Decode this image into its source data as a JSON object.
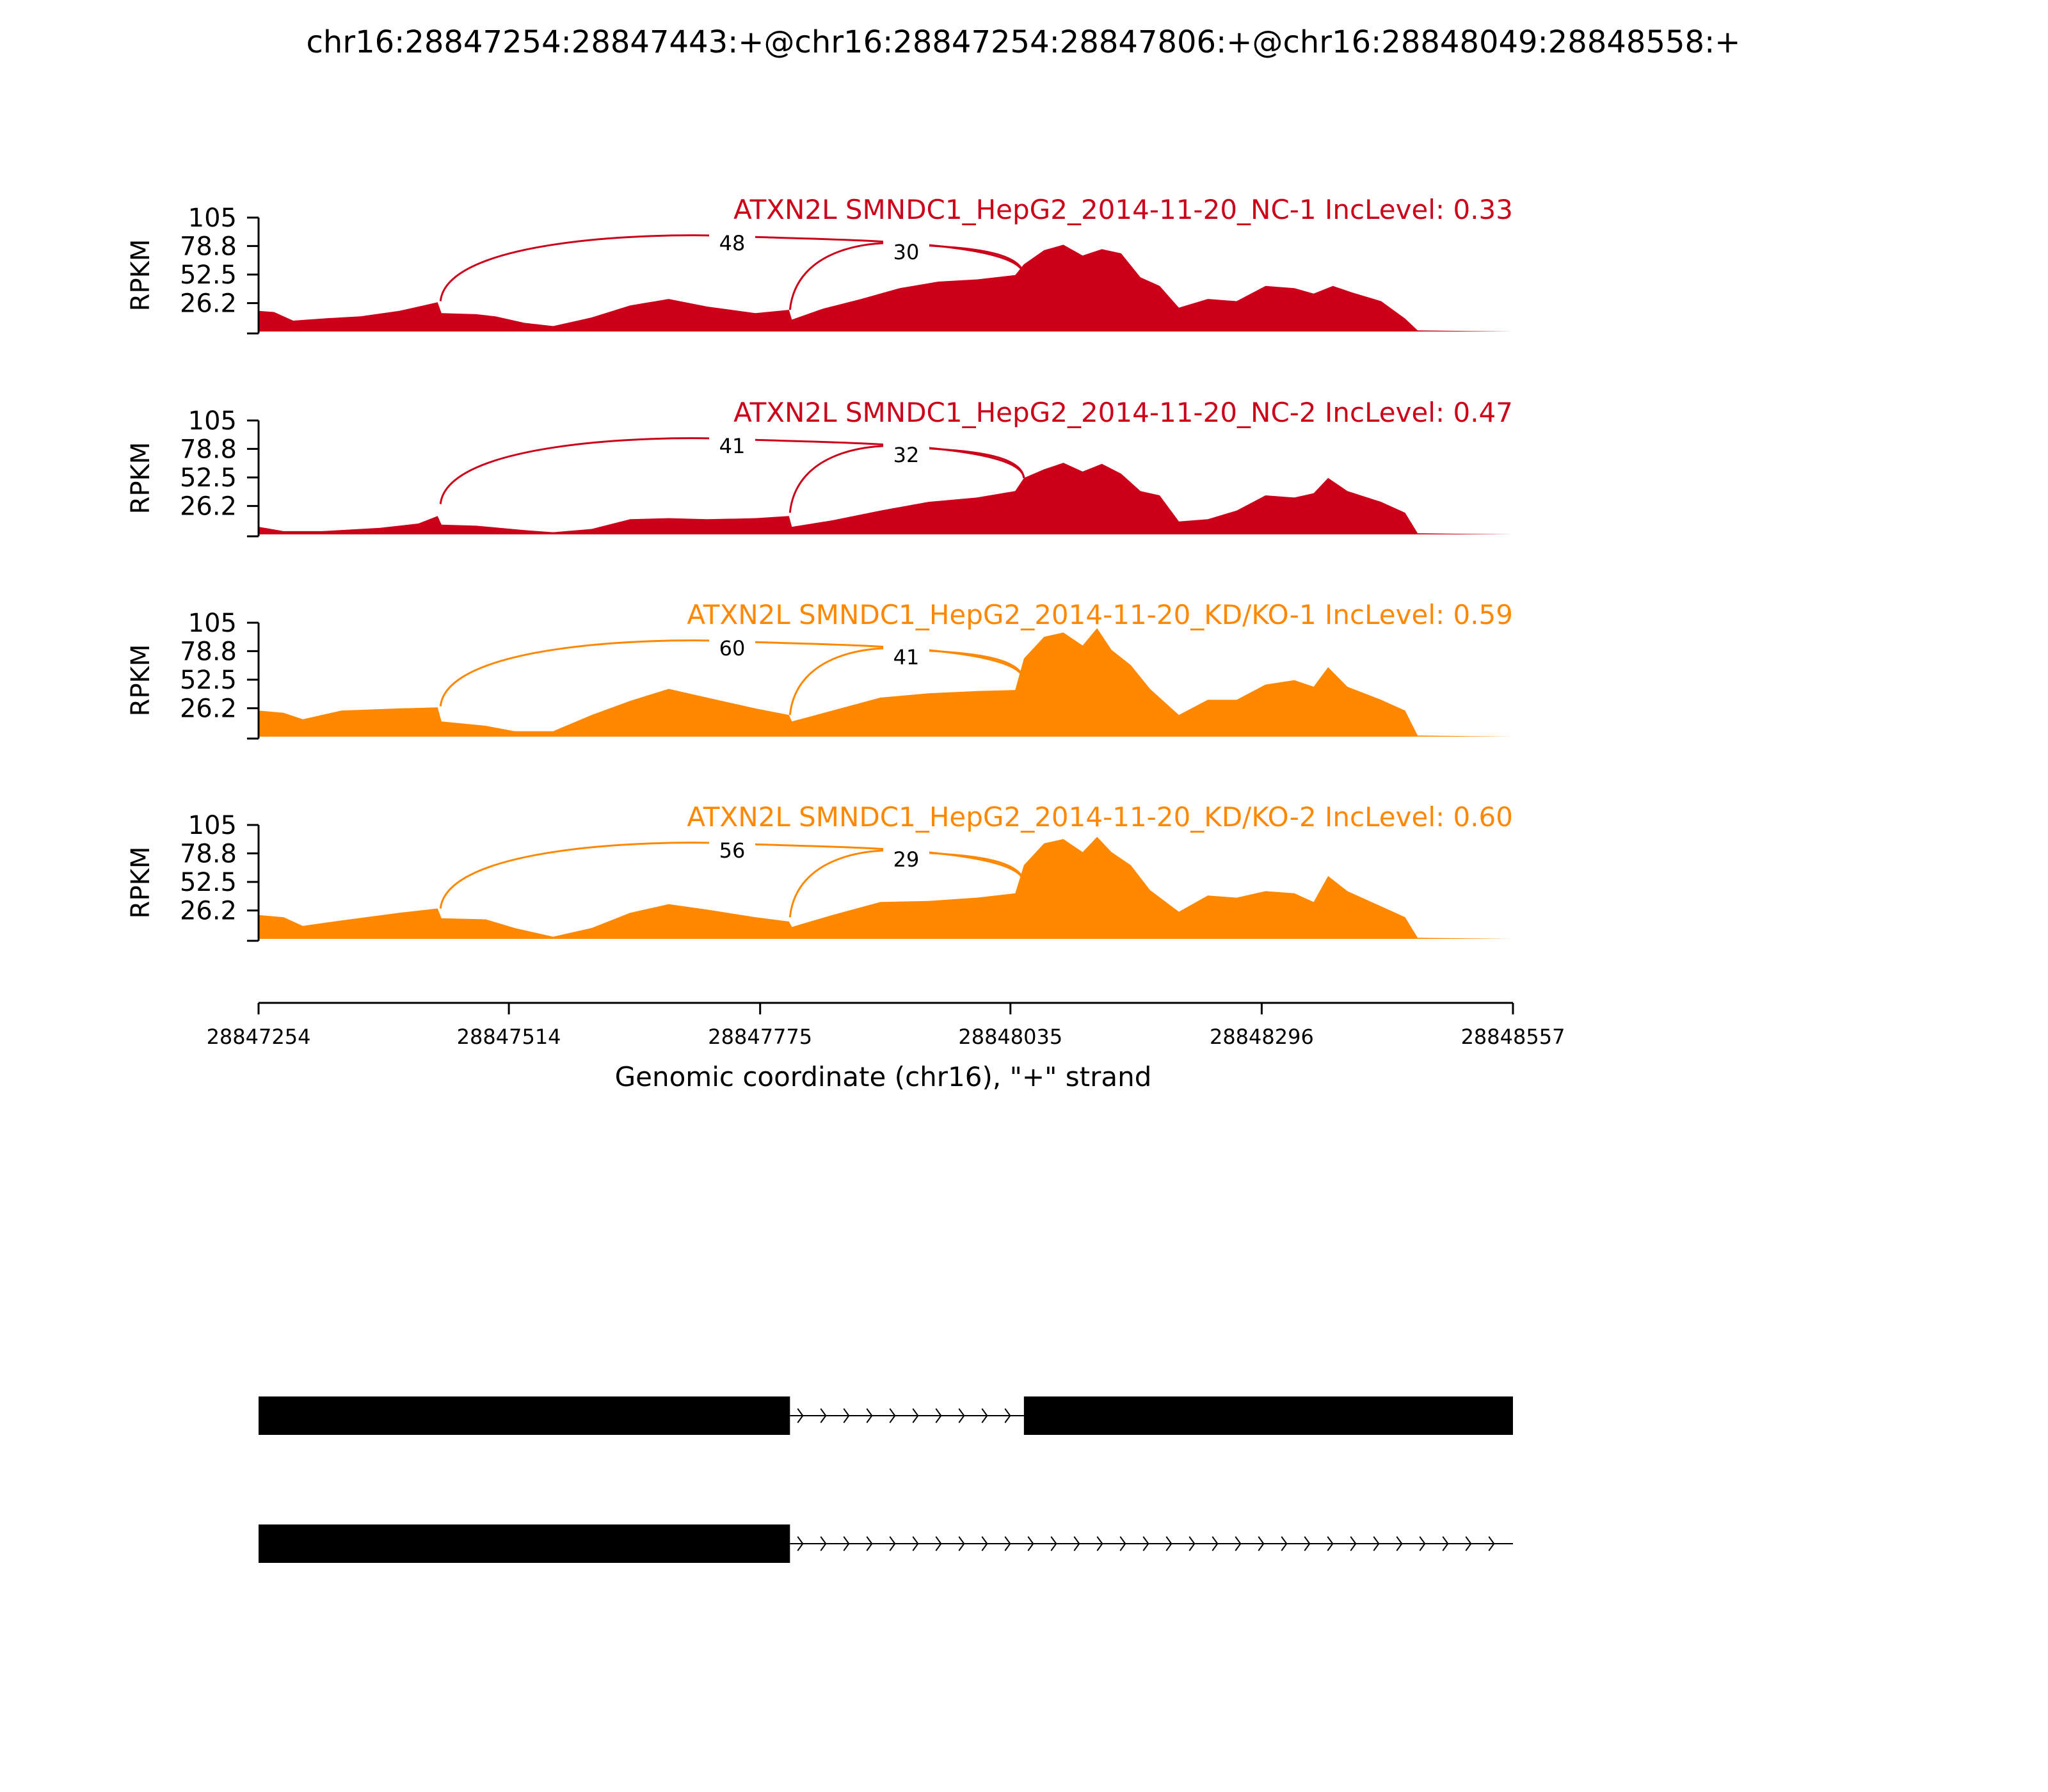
{
  "title": "chr16:28847254:28847443:+@chr16:28847254:28847806:+@chr16:28848049:28848558:+",
  "colors": {
    "nc": "#cc0019",
    "kd": "#ff8800",
    "axis": "#000000",
    "exon": "#000000"
  },
  "chart_data": {
    "type": "area",
    "title": "chr16:28847254:28847443:+@chr16:28847254:28847806:+@chr16:28848049:28848558:+",
    "xlabel": "Genomic coordinate (chr16), \"+\" strand",
    "ylabel": "RPKM",
    "xlim": [
      28847254,
      28848557
    ],
    "x_ticks": [
      "28847254",
      "28847514",
      "28847775",
      "28848035",
      "28848296",
      "28848557"
    ],
    "ylim": [
      0,
      105
    ],
    "y_ticks": [
      "26.2",
      "52.5",
      "78.8",
      "105"
    ],
    "grid": false,
    "tracks": [
      {
        "label": "ATXN2L SMNDC1_HepG2_2014-11-20_NC-1 IncLevel: 0.33",
        "color": "#cc0019",
        "junctions": [
          {
            "from": 28847443,
            "to": 28848049,
            "count": "48"
          },
          {
            "from": 28847806,
            "to": 28848049,
            "count": "30"
          }
        ],
        "coverage": [
          [
            28847254,
            19
          ],
          [
            28847270,
            18
          ],
          [
            28847290,
            10
          ],
          [
            28847320,
            12
          ],
          [
            28847360,
            14
          ],
          [
            28847400,
            19
          ],
          [
            28847440,
            27
          ],
          [
            28847444,
            17
          ],
          [
            28847480,
            16
          ],
          [
            28847500,
            14
          ],
          [
            28847530,
            8
          ],
          [
            28847560,
            5
          ],
          [
            28847600,
            13
          ],
          [
            28847640,
            24
          ],
          [
            28847680,
            30
          ],
          [
            28847720,
            23
          ],
          [
            28847770,
            17
          ],
          [
            28847805,
            20
          ],
          [
            28847808,
            11
          ],
          [
            28847840,
            21
          ],
          [
            28847880,
            30
          ],
          [
            28847920,
            40
          ],
          [
            28847960,
            46
          ],
          [
            28848000,
            48
          ],
          [
            28848040,
            52
          ],
          [
            28848049,
            62
          ],
          [
            28848070,
            75
          ],
          [
            28848090,
            80
          ],
          [
            28848110,
            70
          ],
          [
            28848130,
            76
          ],
          [
            28848150,
            72
          ],
          [
            28848170,
            50
          ],
          [
            28848190,
            42
          ],
          [
            28848210,
            22
          ],
          [
            28848240,
            30
          ],
          [
            28848270,
            28
          ],
          [
            28848300,
            42
          ],
          [
            28848330,
            40
          ],
          [
            28848350,
            35
          ],
          [
            28848370,
            42
          ],
          [
            28848390,
            36
          ],
          [
            28848420,
            28
          ],
          [
            28848445,
            12
          ],
          [
            28848458,
            1
          ],
          [
            28848557,
            0
          ]
        ]
      },
      {
        "label": "ATXN2L SMNDC1_HepG2_2014-11-20_NC-2 IncLevel: 0.47",
        "color": "#cc0019",
        "junctions": [
          {
            "from": 28847443,
            "to": 28848049,
            "count": "41"
          },
          {
            "from": 28847806,
            "to": 28848049,
            "count": "32"
          }
        ],
        "coverage": [
          [
            28847254,
            7
          ],
          [
            28847280,
            3
          ],
          [
            28847320,
            3
          ],
          [
            28847380,
            6
          ],
          [
            28847420,
            10
          ],
          [
            28847440,
            17
          ],
          [
            28847444,
            9
          ],
          [
            28847480,
            8
          ],
          [
            28847530,
            4
          ],
          [
            28847560,
            2
          ],
          [
            28847600,
            5
          ],
          [
            28847640,
            14
          ],
          [
            28847680,
            15
          ],
          [
            28847720,
            14
          ],
          [
            28847770,
            15
          ],
          [
            28847805,
            17
          ],
          [
            28847808,
            7
          ],
          [
            28847850,
            13
          ],
          [
            28847900,
            22
          ],
          [
            28847950,
            30
          ],
          [
            28848000,
            34
          ],
          [
            28848040,
            40
          ],
          [
            28848049,
            52
          ],
          [
            28848070,
            60
          ],
          [
            28848090,
            66
          ],
          [
            28848110,
            58
          ],
          [
            28848130,
            65
          ],
          [
            28848150,
            56
          ],
          [
            28848170,
            40
          ],
          [
            28848190,
            36
          ],
          [
            28848210,
            12
          ],
          [
            28848240,
            14
          ],
          [
            28848270,
            22
          ],
          [
            28848300,
            36
          ],
          [
            28848330,
            34
          ],
          [
            28848350,
            38
          ],
          [
            28848365,
            52
          ],
          [
            28848385,
            40
          ],
          [
            28848420,
            30
          ],
          [
            28848445,
            20
          ],
          [
            28848458,
            1
          ],
          [
            28848557,
            0
          ]
        ]
      },
      {
        "label": "ATXN2L SMNDC1_HepG2_2014-11-20_KD/KO-1 IncLevel: 0.59",
        "color": "#ff8800",
        "junctions": [
          {
            "from": 28847443,
            "to": 28848049,
            "count": "60"
          },
          {
            "from": 28847806,
            "to": 28848049,
            "count": "41"
          }
        ],
        "coverage": [
          [
            28847254,
            24
          ],
          [
            28847280,
            22
          ],
          [
            28847300,
            16
          ],
          [
            28847340,
            24
          ],
          [
            28847400,
            26
          ],
          [
            28847440,
            27
          ],
          [
            28847444,
            14
          ],
          [
            28847490,
            10
          ],
          [
            28847520,
            5
          ],
          [
            28847560,
            5
          ],
          [
            28847600,
            20
          ],
          [
            28847640,
            33
          ],
          [
            28847680,
            44
          ],
          [
            28847720,
            36
          ],
          [
            28847770,
            26
          ],
          [
            28847805,
            20
          ],
          [
            28847808,
            14
          ],
          [
            28847850,
            24
          ],
          [
            28847900,
            36
          ],
          [
            28847950,
            40
          ],
          [
            28848000,
            42
          ],
          [
            28848040,
            43
          ],
          [
            28848049,
            72
          ],
          [
            28848070,
            92
          ],
          [
            28848090,
            96
          ],
          [
            28848110,
            84
          ],
          [
            28848125,
            100
          ],
          [
            28848140,
            80
          ],
          [
            28848160,
            66
          ],
          [
            28848180,
            44
          ],
          [
            28848210,
            20
          ],
          [
            28848240,
            34
          ],
          [
            28848270,
            34
          ],
          [
            28848300,
            48
          ],
          [
            28848330,
            52
          ],
          [
            28848350,
            46
          ],
          [
            28848365,
            64
          ],
          [
            28848385,
            46
          ],
          [
            28848420,
            34
          ],
          [
            28848445,
            24
          ],
          [
            28848458,
            1
          ],
          [
            28848557,
            0
          ]
        ]
      },
      {
        "label": "ATXN2L SMNDC1_HepG2_2014-11-20_KD/KO-2 IncLevel: 0.60",
        "color": "#ff8800",
        "junctions": [
          {
            "from": 28847443,
            "to": 28848049,
            "count": "56"
          },
          {
            "from": 28847806,
            "to": 28848049,
            "count": "29"
          }
        ],
        "coverage": [
          [
            28847254,
            22
          ],
          [
            28847280,
            20
          ],
          [
            28847300,
            12
          ],
          [
            28847340,
            17
          ],
          [
            28847400,
            24
          ],
          [
            28847440,
            28
          ],
          [
            28847444,
            19
          ],
          [
            28847490,
            18
          ],
          [
            28847520,
            10
          ],
          [
            28847560,
            2
          ],
          [
            28847600,
            10
          ],
          [
            28847640,
            24
          ],
          [
            28847680,
            32
          ],
          [
            28847720,
            27
          ],
          [
            28847770,
            20
          ],
          [
            28847805,
            16
          ],
          [
            28847808,
            11
          ],
          [
            28847850,
            22
          ],
          [
            28847900,
            34
          ],
          [
            28847950,
            35
          ],
          [
            28848000,
            38
          ],
          [
            28848040,
            42
          ],
          [
            28848049,
            68
          ],
          [
            28848070,
            88
          ],
          [
            28848090,
            92
          ],
          [
            28848110,
            80
          ],
          [
            28848125,
            94
          ],
          [
            28848140,
            80
          ],
          [
            28848160,
            68
          ],
          [
            28848180,
            45
          ],
          [
            28848210,
            25
          ],
          [
            28848240,
            40
          ],
          [
            28848270,
            38
          ],
          [
            28848300,
            44
          ],
          [
            28848330,
            42
          ],
          [
            28848350,
            34
          ],
          [
            28848365,
            58
          ],
          [
            28848385,
            44
          ],
          [
            28848420,
            30
          ],
          [
            28848445,
            20
          ],
          [
            28848458,
            1
          ],
          [
            28848557,
            0
          ]
        ]
      }
    ],
    "isoforms": [
      {
        "exons": [
          [
            28847254,
            28847806
          ],
          [
            28848049,
            28848557
          ]
        ],
        "introns": [
          [
            28847806,
            28848049
          ]
        ]
      },
      {
        "exons": [
          [
            28847254,
            28847806
          ]
        ],
        "introns": [
          [
            28847806,
            28848557
          ]
        ]
      }
    ]
  }
}
